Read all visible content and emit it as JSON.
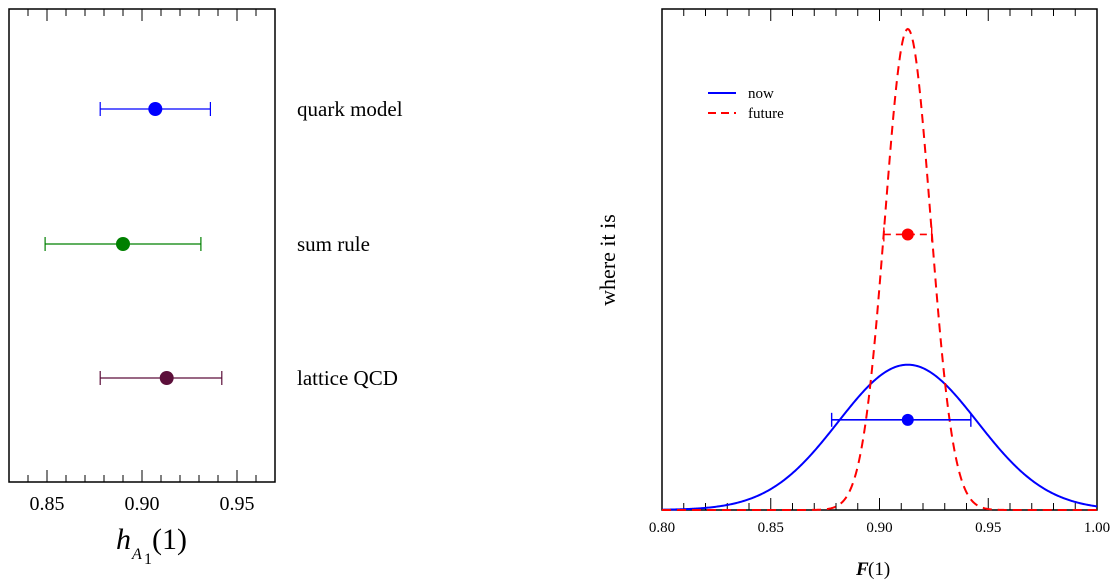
{
  "chart_data": [
    {
      "type": "scatter",
      "xlim": [
        0.83,
        0.97
      ],
      "x_ticks": [
        "0.85",
        "0.90",
        "0.95"
      ],
      "x_tick_values": [
        0.85,
        0.9,
        0.95
      ],
      "xlabel": {
        "main": "h",
        "sub": "A",
        "subsub": "1",
        "suffix": "(1)"
      },
      "points": [
        {
          "label": "quark model",
          "value": 0.907,
          "err_low": 0.878,
          "err_high": 0.936,
          "color": "#0000ff"
        },
        {
          "label": "sum rule",
          "value": 0.89,
          "err_low": 0.849,
          "err_high": 0.931,
          "color": "#008000"
        },
        {
          "label": "lattice QCD",
          "value": 0.913,
          "err_low": 0.878,
          "err_high": 0.942,
          "color": "#5c0f3a"
        }
      ],
      "grid": false
    },
    {
      "type": "line",
      "xlim": [
        0.8,
        1.0
      ],
      "x_ticks": [
        "0.80",
        "0.85",
        "0.90",
        "0.95",
        "1.00"
      ],
      "x_tick_values": [
        0.8,
        0.85,
        0.9,
        0.95,
        1.0
      ],
      "ylabel": "where it is",
      "xlabel": {
        "symbol": "F",
        "suffix": "(1)"
      },
      "legend": {
        "position": "top-left",
        "entries": [
          "now",
          "future"
        ]
      },
      "series": [
        {
          "name": "now",
          "style": "solid",
          "color": "#0000ff",
          "mean": 0.913,
          "sigma": 0.032,
          "peak": 0.29,
          "point": {
            "x": 0.913,
            "y": 0.18,
            "err_low": 0.878,
            "err_high": 0.942
          }
        },
        {
          "name": "future",
          "style": "dashed",
          "color": "#ff0000",
          "mean": 0.913,
          "sigma": 0.0105,
          "peak": 0.96,
          "point": {
            "x": 0.913,
            "y": 0.55,
            "err_low": 0.902,
            "err_high": 0.924
          }
        }
      ],
      "grid": false
    }
  ]
}
